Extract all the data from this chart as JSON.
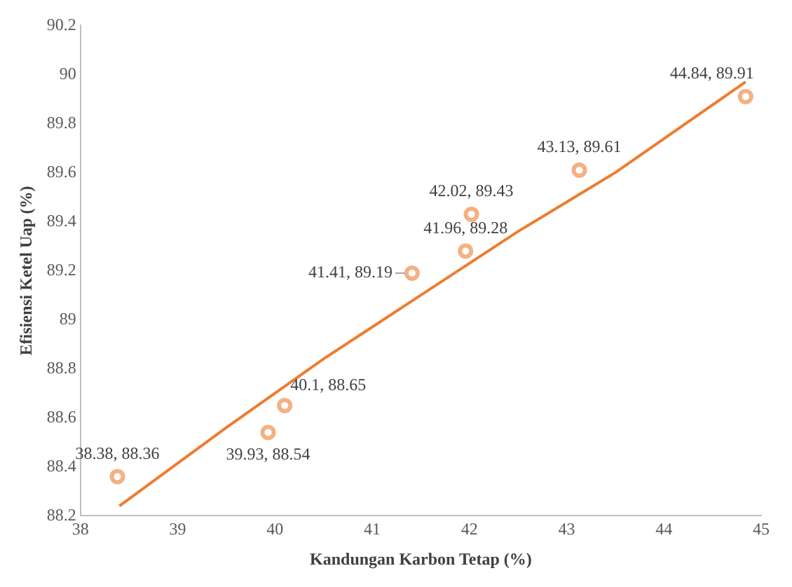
{
  "chart_data": {
    "type": "scatter",
    "xlabel": "Kandungan Karbon Tetap (%)",
    "ylabel": "Efisiensi Ketel Uap (%)",
    "series": [
      {
        "color": "#f4b183",
        "x": [
          38.38,
          39.93,
          40.1,
          41.41,
          41.96,
          42.02,
          43.13,
          44.84
        ],
        "values": [
          88.36,
          88.54,
          88.65,
          89.19,
          89.28,
          89.43,
          89.61,
          89.91
        ],
        "value_labels": [
          "38.38, 88.36",
          "39.93, 88.54",
          "40.1, 88.65",
          "41.41, 89.19",
          "41.96, 89.28",
          "42.02, 89.43",
          "43.13, 89.61",
          "44.84, 89.91"
        ]
      },
      {
        "type": "line",
        "color": "#ed7d31",
        "marker": "none",
        "x": [
          38.4,
          39.5,
          40.5,
          41.5,
          42.5,
          43.5,
          44.84
        ],
        "values": [
          88.24,
          88.56,
          88.84,
          89.1,
          89.36,
          89.6,
          89.97
        ]
      }
    ],
    "xlim": [
      38,
      45
    ],
    "xticks": [
      38,
      39,
      40,
      41,
      42,
      43,
      44,
      45
    ],
    "ylim": [
      88.2,
      90.2
    ],
    "yticks": [
      88.2,
      88.4,
      88.6,
      88.8,
      89,
      89.2,
      89.4,
      89.6,
      89.8,
      90,
      90.2
    ],
    "grid": false,
    "legend": false,
    "marker": "circle"
  }
}
